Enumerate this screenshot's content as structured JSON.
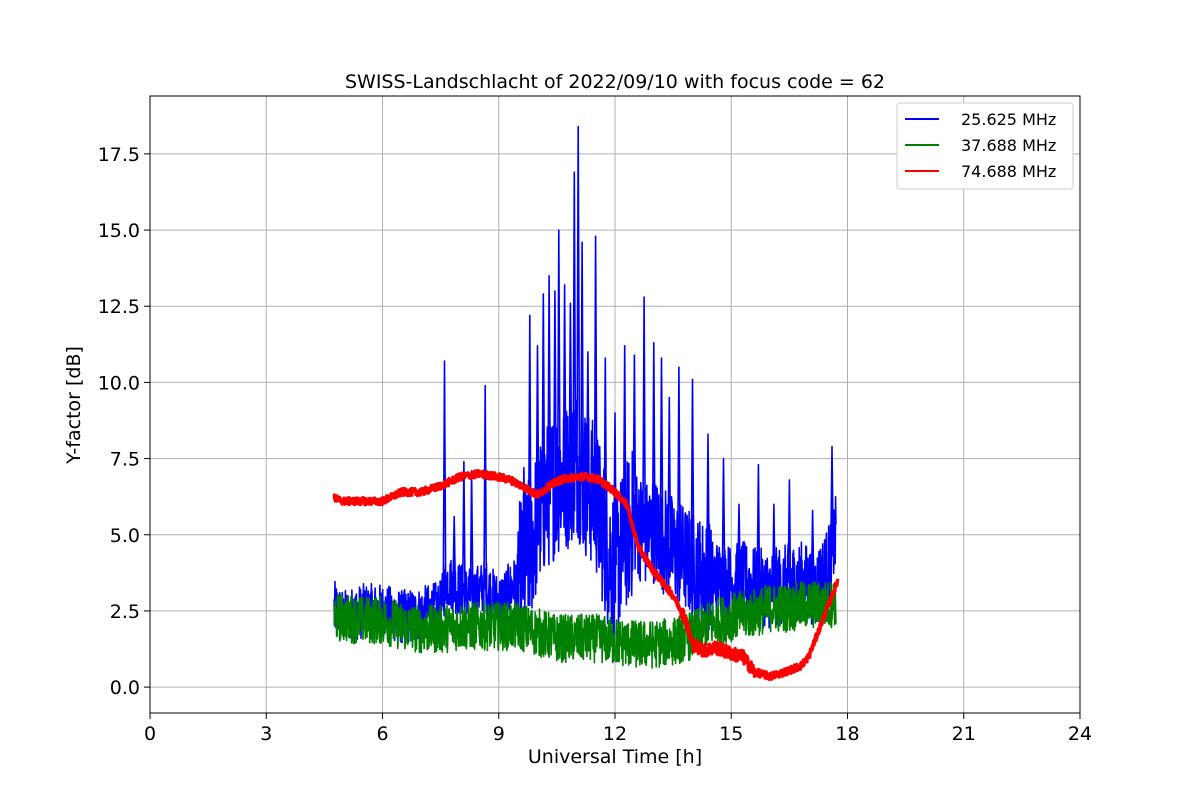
{
  "chart_data": {
    "type": "line",
    "title": "SWISS-Landschlacht of 2022/09/10 with focus code = 62",
    "xlabel": "Universal Time [h]",
    "ylabel": "Y-factor [dB]",
    "xlim": [
      0,
      24
    ],
    "ylim": [
      -0.85,
      19.4
    ],
    "xticks": [
      0,
      3,
      6,
      9,
      12,
      15,
      18,
      21,
      24
    ],
    "yticks": [
      0.0,
      2.5,
      5.0,
      7.5,
      10.0,
      12.5,
      15.0,
      17.5
    ],
    "xtick_labels": [
      "0",
      "3",
      "6",
      "9",
      "12",
      "15",
      "18",
      "21",
      "24"
    ],
    "ytick_labels": [
      "0.0",
      "2.5",
      "5.0",
      "7.5",
      "10.0",
      "12.5",
      "15.0",
      "17.5"
    ],
    "grid": true,
    "legend_position": "top-right",
    "legend_labels": [
      "25.625 MHz",
      "37.688 MHz",
      "74.688 MHz"
    ],
    "series": [
      {
        "name": "25.625 MHz",
        "color": "#0000ff",
        "x": [
          4.75,
          5.0,
          5.5,
          6.0,
          6.5,
          7.0,
          7.5,
          7.65,
          8.0,
          8.3,
          8.65,
          9.0,
          9.5,
          9.8,
          10.0,
          10.2,
          10.5,
          10.8,
          11.0,
          11.2,
          11.5,
          11.8,
          12.0,
          12.3,
          12.5,
          12.8,
          13.0,
          13.5,
          14.0,
          14.2,
          14.5,
          15.0,
          15.3,
          15.6,
          16.0,
          16.4,
          16.8,
          17.2,
          17.5,
          17.7
        ],
        "y": [
          2.6,
          2.3,
          2.5,
          2.5,
          2.3,
          2.4,
          2.6,
          3.5,
          3.2,
          3.0,
          3.3,
          2.8,
          3.5,
          4.5,
          5.5,
          6.2,
          6.8,
          7.0,
          7.5,
          6.8,
          6.2,
          4.5,
          4.0,
          5.0,
          5.5,
          5.0,
          5.2,
          4.5,
          4.0,
          3.8,
          3.6,
          3.4,
          3.5,
          3.3,
          3.2,
          3.4,
          3.5,
          3.3,
          4.0,
          5.0
        ]
      },
      {
        "name": "37.688 MHz",
        "color": "#008000",
        "x": [
          4.75,
          5.5,
          6.0,
          6.5,
          7.0,
          7.5,
          8.0,
          8.5,
          9.0,
          9.5,
          10.0,
          10.5,
          11.0,
          11.5,
          12.0,
          12.5,
          13.0,
          13.5,
          14.0,
          14.5,
          15.0,
          15.5,
          16.0,
          16.5,
          17.0,
          17.5,
          17.7
        ],
        "y": [
          2.3,
          2.2,
          2.2,
          2.0,
          1.9,
          1.9,
          2.0,
          2.0,
          2.0,
          2.0,
          1.8,
          1.6,
          1.6,
          1.6,
          1.5,
          1.4,
          1.4,
          1.5,
          1.7,
          2.1,
          2.3,
          2.4,
          2.6,
          2.6,
          2.7,
          2.7,
          2.8
        ]
      },
      {
        "name": "74.688 MHz",
        "color": "#ff0000",
        "x": [
          4.75,
          5.0,
          5.5,
          6.0,
          6.5,
          7.0,
          7.5,
          8.0,
          8.5,
          9.0,
          9.3,
          9.6,
          10.0,
          10.3,
          10.6,
          11.0,
          11.3,
          11.6,
          12.0,
          12.3,
          12.6,
          13.0,
          13.5,
          13.8,
          14.0,
          14.3,
          14.6,
          15.0,
          15.3,
          15.6,
          16.0,
          16.4,
          16.8,
          17.0,
          17.3,
          17.6,
          17.75
        ],
        "y": [
          6.2,
          6.1,
          6.1,
          6.1,
          6.4,
          6.4,
          6.6,
          6.9,
          7.0,
          6.9,
          6.8,
          6.6,
          6.3,
          6.6,
          6.8,
          6.9,
          6.9,
          6.8,
          6.4,
          6.0,
          4.6,
          3.8,
          3.0,
          2.3,
          1.4,
          1.2,
          1.3,
          1.1,
          1.0,
          0.5,
          0.35,
          0.5,
          0.7,
          1.0,
          2.0,
          3.0,
          3.5
        ]
      }
    ],
    "peaks_25_625": [
      {
        "x": 7.6,
        "y": 10.7
      },
      {
        "x": 7.85,
        "y": 5.6
      },
      {
        "x": 8.1,
        "y": 7.4
      },
      {
        "x": 8.3,
        "y": 7.1
      },
      {
        "x": 8.65,
        "y": 9.9
      },
      {
        "x": 9.65,
        "y": 7.2
      },
      {
        "x": 9.8,
        "y": 12.2
      },
      {
        "x": 10.0,
        "y": 11.2
      },
      {
        "x": 10.15,
        "y": 12.9
      },
      {
        "x": 10.3,
        "y": 13.5
      },
      {
        "x": 10.45,
        "y": 13.0
      },
      {
        "x": 10.55,
        "y": 15.0
      },
      {
        "x": 10.7,
        "y": 13.2
      },
      {
        "x": 10.85,
        "y": 12.6
      },
      {
        "x": 10.95,
        "y": 16.9
      },
      {
        "x": 11.05,
        "y": 18.4
      },
      {
        "x": 11.15,
        "y": 14.6
      },
      {
        "x": 11.3,
        "y": 11.0
      },
      {
        "x": 11.5,
        "y": 14.8
      },
      {
        "x": 11.75,
        "y": 10.8
      },
      {
        "x": 12.0,
        "y": 9.0
      },
      {
        "x": 12.25,
        "y": 11.2
      },
      {
        "x": 12.5,
        "y": 10.9
      },
      {
        "x": 12.75,
        "y": 12.8
      },
      {
        "x": 13.0,
        "y": 11.3
      },
      {
        "x": 13.2,
        "y": 10.8
      },
      {
        "x": 13.4,
        "y": 9.5
      },
      {
        "x": 13.65,
        "y": 10.5
      },
      {
        "x": 14.0,
        "y": 10.1
      },
      {
        "x": 14.4,
        "y": 8.3
      },
      {
        "x": 14.8,
        "y": 7.5
      },
      {
        "x": 15.2,
        "y": 6.0
      },
      {
        "x": 15.7,
        "y": 7.3
      },
      {
        "x": 16.1,
        "y": 6.0
      },
      {
        "x": 16.5,
        "y": 6.8
      },
      {
        "x": 17.1,
        "y": 5.8
      },
      {
        "x": 17.6,
        "y": 7.9
      }
    ]
  }
}
